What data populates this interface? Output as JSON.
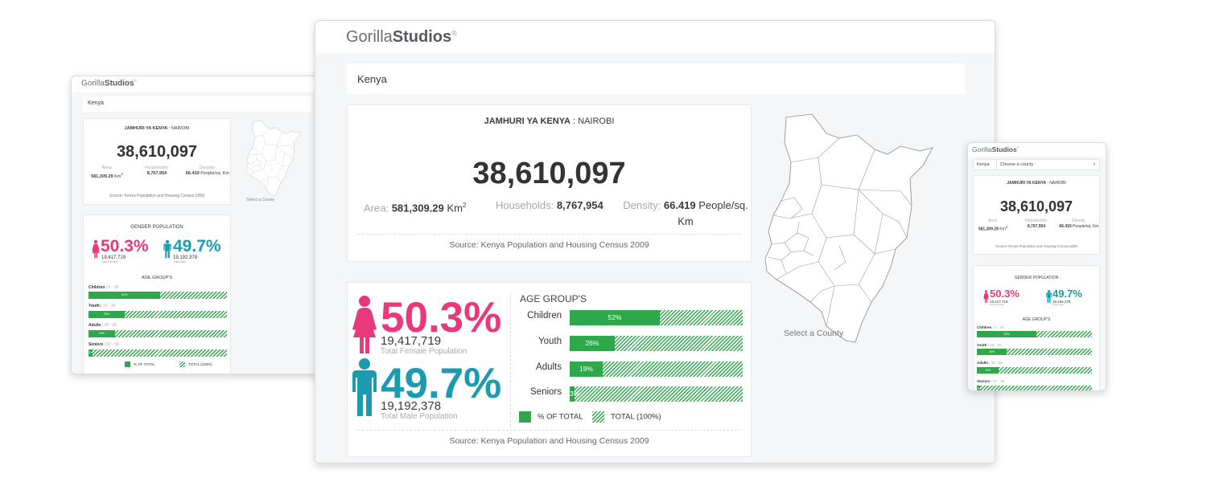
{
  "brand": {
    "prefix": "Gorilla",
    "name": "Studios",
    "mark": "®"
  },
  "search": {
    "value": "Kenya"
  },
  "county_select": {
    "value": "Choose a county",
    "chevron": "⇕"
  },
  "census": {
    "title_bold": "JAMHURI YA KENYA",
    "title_rest": " : NAIROBI",
    "population": "38,610,097",
    "area_label": "Area:",
    "area_value": "581,309.29",
    "area_unit": "Km",
    "area_exp": "2",
    "households_label": "Households:",
    "households_value": "8,767,954",
    "density_label": "Density:",
    "density_value": "66.419",
    "density_unit": "People/sq. Km",
    "source": "Source: Kenya Population and Housing Census 2009"
  },
  "gender": {
    "title": "GENDER POPULATION",
    "female_pct": "50.3%",
    "female_count": "19,417,719",
    "female_caption": "Total Female Population",
    "female_short": "Total Female",
    "male_pct": "49.7%",
    "male_count": "19,192,378",
    "male_caption": "Total Male Population",
    "male_short": "Total Male"
  },
  "age": {
    "title": "AGE GROUP'S",
    "groups": [
      {
        "label": "Children",
        "range": " | 0 - 18",
        "pct": "52%",
        "value": 0.52
      },
      {
        "label": "Youth",
        "range": " | 19 - 34",
        "pct": "26%",
        "value": 0.26
      },
      {
        "label": "Adults",
        "range": " | 35 - 66",
        "pct": "19%",
        "value": 0.19
      },
      {
        "label": "Seniors",
        "range": " | 67 - 99",
        "pct": "3%",
        "value": 0.03
      }
    ],
    "legend_pct": "% OF TOTAL",
    "legend_total": "TOTAL (100%)",
    "legend_total_small": "TOTAL (100%)"
  },
  "map": {
    "label": "Select a County"
  },
  "colors": {
    "female": "#e8397d",
    "male": "#1c9bb0",
    "bar": "#2ea84a"
  },
  "icons": {
    "female": "female-figure-icon",
    "male": "male-figure-icon",
    "map": "kenya-county-map"
  }
}
